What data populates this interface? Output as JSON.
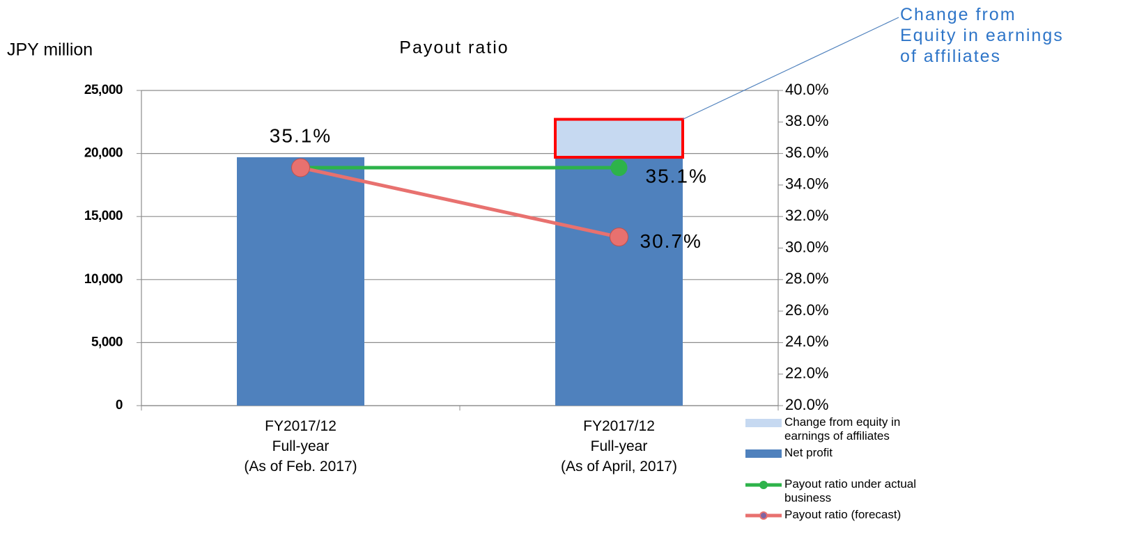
{
  "chart_data": {
    "type": "bar",
    "title": "Payout ratio",
    "y_label": "JPY million",
    "annotation": "Change from\nEquity in earnings\nof affiliates",
    "categories": [
      "FY2017/12\nFull-year\n(As of Feb. 2017)",
      "FY2017/12\nFull-year\n(As of April, 2017)"
    ],
    "series": [
      {
        "name": "Change from equity in earnings of affiliates",
        "type": "bar",
        "color": "#c6d9f1",
        "values": [
          null,
          2900
        ]
      },
      {
        "name": "Net profit",
        "type": "bar",
        "color": "#4f81bd",
        "values": [
          19700,
          19700
        ]
      },
      {
        "name": "Payout ratio under actual business",
        "type": "line",
        "axis": "y2",
        "color": "#2db34a",
        "values": [
          35.1,
          35.1
        ],
        "value_labels": [
          "35.1%",
          "35.1%"
        ]
      },
      {
        "name": "Payout ratio (forecast)",
        "type": "line",
        "axis": "y2",
        "color": "#e8716f",
        "values": [
          35.1,
          30.7
        ],
        "value_labels": [
          null,
          "30.7%"
        ]
      }
    ],
    "ylim": [
      0,
      25000
    ],
    "yticks": [
      0,
      {
        "value": 5000,
        "label": "5,000"
      },
      {
        "value": 10000,
        "label": "10,000"
      },
      {
        "value": 15000,
        "label": "15,000"
      },
      {
        "value": 20000,
        "label": "20,000"
      },
      {
        "value": 25000,
        "label": "25,000"
      }
    ],
    "y2lim": [
      20,
      40
    ],
    "y2ticks": [
      {
        "value": 20,
        "label": "20.0%"
      },
      {
        "value": 22,
        "label": "22.0%"
      },
      {
        "value": 24,
        "label": "24.0%"
      },
      {
        "value": 26,
        "label": "26.0%"
      },
      {
        "value": 28,
        "label": "28.0%"
      },
      {
        "value": 30,
        "label": "30.0%"
      },
      {
        "value": 32,
        "label": "32.0%"
      },
      {
        "value": 34,
        "label": "34.0%"
      },
      {
        "value": 36,
        "label": "36.0%"
      },
      {
        "value": 38,
        "label": "38.0%"
      },
      {
        "value": 40,
        "label": "40.0%"
      }
    ],
    "grid": true,
    "legend": "bottom-right"
  }
}
